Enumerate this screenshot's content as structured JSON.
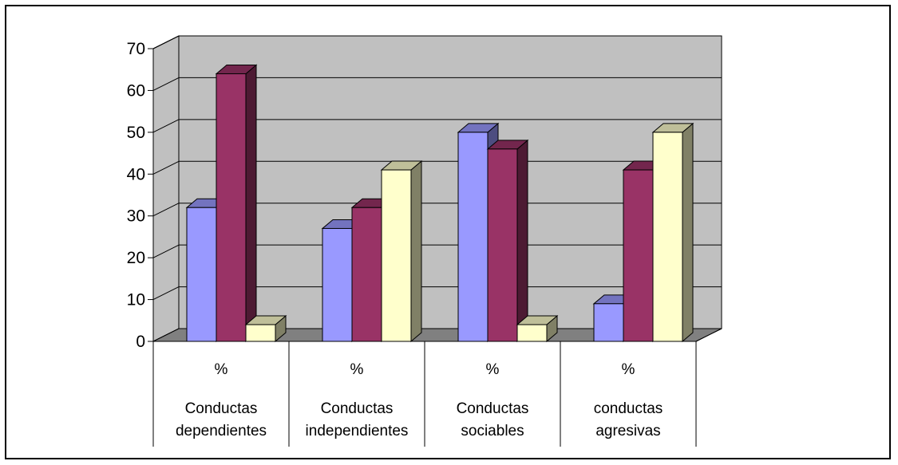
{
  "chart_data": {
    "type": "bar",
    "categories": [
      [
        "%",
        "Conductas",
        "dependientes"
      ],
      [
        "%",
        "Conductas",
        "independientes"
      ],
      [
        "%",
        "Conductas",
        "sociables"
      ],
      [
        "%",
        "conductas",
        "agresivas"
      ]
    ],
    "series": [
      {
        "color": "#9999ff",
        "values": [
          32,
          27,
          50,
          9
        ]
      },
      {
        "color": "#993366",
        "values": [
          64,
          32,
          46,
          41
        ]
      },
      {
        "color": "#ffffcc",
        "values": [
          4,
          41,
          4,
          50
        ]
      }
    ],
    "ylim": [
      0,
      70
    ],
    "yticks": [
      0,
      10,
      20,
      30,
      40,
      50,
      60,
      70
    ],
    "grid": true,
    "wall_color": "#c0c0c0",
    "floor_color": "#808080",
    "title": "",
    "xlabel": "",
    "ylabel": ""
  }
}
